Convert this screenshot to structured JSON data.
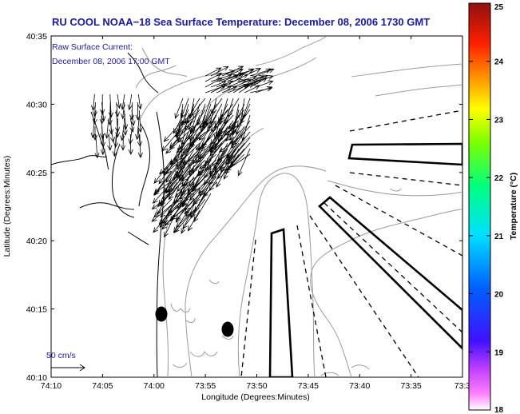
{
  "title": "RU COOL  NOAA−18  Sea Surface Temperature:  December 08, 2006 1730 GMT",
  "annotation": {
    "line1": "Raw Surface Current:",
    "line2": "December 08, 2006 17:00 GMT"
  },
  "scale_label": "50 cm/s",
  "axes": {
    "xlabel": "Longitude (Degrees:Minutes)",
    "ylabel": "Latitude (Degrees:Minutes)",
    "x_ticks": [
      "74:10",
      "74:05",
      "74:00",
      "73:55",
      "73:50",
      "73:45",
      "73:40",
      "73:35",
      "73:3"
    ],
    "y_ticks": [
      "40:35",
      "40:30",
      "40:25",
      "40:20",
      "40:15",
      "40:10"
    ]
  },
  "colorbar": {
    "label": "Temperature (°C)",
    "ticks": [
      "25",
      "24",
      "23",
      "22",
      "21",
      "20",
      "19",
      "18"
    ],
    "min": 18,
    "max": 25
  }
}
